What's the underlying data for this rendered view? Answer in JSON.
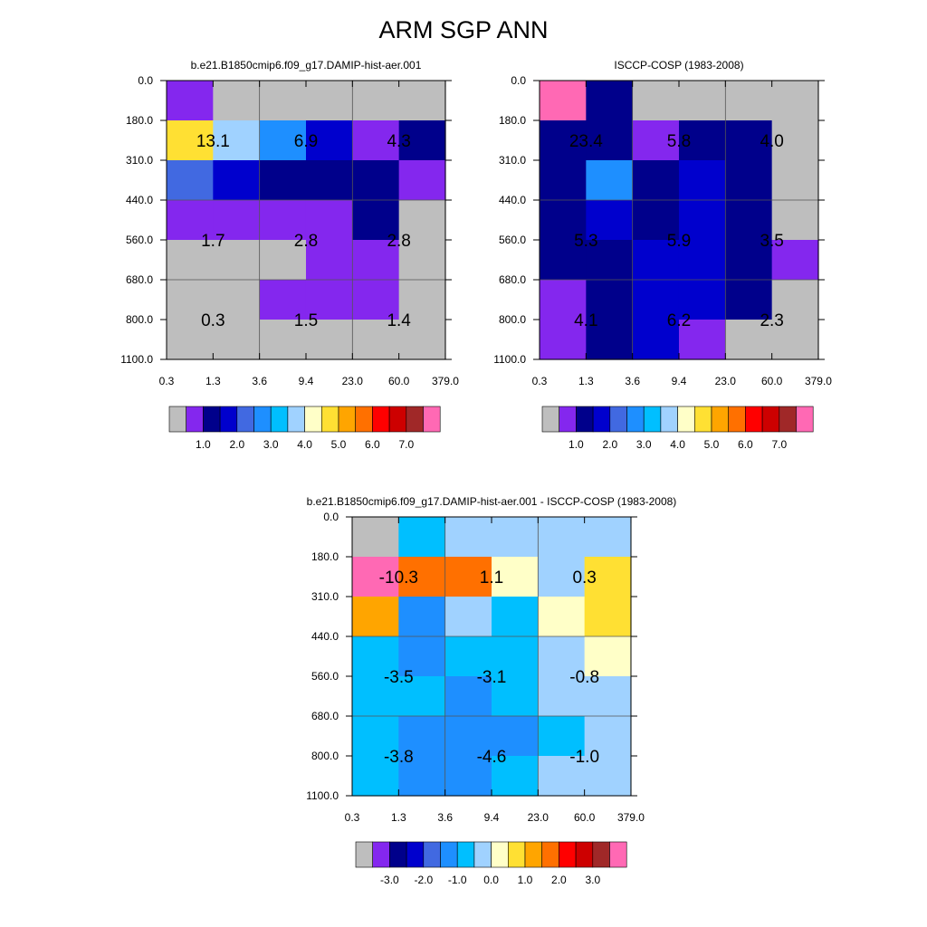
{
  "title": "ARM SGP ANN",
  "chart_data": [
    {
      "type": "heatmap",
      "title": "b.e21.B1850cmip6.f09_g17.DAMIP-hist-aer.001",
      "x_ticks": [
        "0.3",
        "1.3",
        "3.6",
        "9.4",
        "23.0",
        "60.0",
        "379.0"
      ],
      "y_ticks": [
        "0.0",
        "180.0",
        "310.0",
        "440.0",
        "560.0",
        "680.0",
        "800.0",
        "1100.0"
      ],
      "cells": [
        [
          "#8427EE",
          "#BEBEBE",
          "#BEBEBE",
          "#BEBEBE",
          "#BEBEBE",
          "#BEBEBE"
        ],
        [
          "#FFE033",
          "#A0D2FF",
          "#1E8FFF",
          "#0000CD",
          "#8427EE",
          "#00008B"
        ],
        [
          "#4169E1",
          "#0000CD",
          "#00008B",
          "#00008B",
          "#00008B",
          "#8427EE"
        ],
        [
          "#8427EE",
          "#8427EE",
          "#8427EE",
          "#8427EE",
          "#00008B",
          "#BEBEBE"
        ],
        [
          "#BEBEBE",
          "#BEBEBE",
          "#BEBEBE",
          "#8427EE",
          "#8427EE",
          "#BEBEBE"
        ],
        [
          "#BEBEBE",
          "#BEBEBE",
          "#8427EE",
          "#8427EE",
          "#8427EE",
          "#BEBEBE"
        ],
        [
          "#BEBEBE",
          "#BEBEBE",
          "#BEBEBE",
          "#BEBEBE",
          "#BEBEBE",
          "#BEBEBE"
        ]
      ],
      "totals": [
        {
          "value": "13.1",
          "xcol": 1,
          "ybound": 1.5
        },
        {
          "value": "6.9",
          "xcol": 3,
          "ybound": 1.5
        },
        {
          "value": "4.3",
          "xcol": 5,
          "ybound": 1.5
        },
        {
          "value": "1.7",
          "xcol": 1,
          "ybound": 4
        },
        {
          "value": "2.8",
          "xcol": 3,
          "ybound": 4
        },
        {
          "value": "2.8",
          "xcol": 5,
          "ybound": 4
        },
        {
          "value": "0.3",
          "xcol": 1,
          "ybound": 6
        },
        {
          "value": "1.5",
          "xcol": 3,
          "ybound": 6
        },
        {
          "value": "1.4",
          "xcol": 5,
          "ybound": 6
        }
      ],
      "colorbar": {
        "colors": [
          "#BEBEBE",
          "#8427EE",
          "#00008B",
          "#0000CD",
          "#4169E1",
          "#1E8FFF",
          "#00BFFF",
          "#A0D2FF",
          "#FFFFC8",
          "#FFE033",
          "#FFA500",
          "#FF7000",
          "#FF0000",
          "#CD0000",
          "#A02828",
          "#FF69B4"
        ],
        "labels": [
          {
            "text": "1.0",
            "pos": 2
          },
          {
            "text": "2.0",
            "pos": 4
          },
          {
            "text": "3.0",
            "pos": 6
          },
          {
            "text": "4.0",
            "pos": 8
          },
          {
            "text": "5.0",
            "pos": 10
          },
          {
            "text": "6.0",
            "pos": 12
          },
          {
            "text": "7.0",
            "pos": 14
          }
        ]
      }
    },
    {
      "type": "heatmap",
      "title": "ISCCP-COSP (1983-2008)",
      "x_ticks": [
        "0.3",
        "1.3",
        "3.6",
        "9.4",
        "23.0",
        "60.0",
        "379.0"
      ],
      "y_ticks": [
        "0.0",
        "180.0",
        "310.0",
        "440.0",
        "560.0",
        "680.0",
        "800.0",
        "1100.0"
      ],
      "cells": [
        [
          "#FF69B4",
          "#00008B",
          "#BEBEBE",
          "#BEBEBE",
          "#BEBEBE",
          "#BEBEBE"
        ],
        [
          "#00008B",
          "#00008B",
          "#8427EE",
          "#00008B",
          "#00008B",
          "#BEBEBE"
        ],
        [
          "#00008B",
          "#1E8FFF",
          "#00008B",
          "#0000CD",
          "#00008B",
          "#BEBEBE"
        ],
        [
          "#00008B",
          "#0000CD",
          "#00008B",
          "#0000CD",
          "#00008B",
          "#BEBEBE"
        ],
        [
          "#00008B",
          "#00008B",
          "#0000CD",
          "#0000CD",
          "#00008B",
          "#8427EE"
        ],
        [
          "#8427EE",
          "#00008B",
          "#0000CD",
          "#0000CD",
          "#00008B",
          "#BEBEBE"
        ],
        [
          "#8427EE",
          "#00008B",
          "#0000CD",
          "#8427EE",
          "#BEBEBE",
          "#BEBEBE"
        ]
      ],
      "totals": [
        {
          "value": "23.4",
          "xcol": 1,
          "ybound": 1.5
        },
        {
          "value": "5.8",
          "xcol": 3,
          "ybound": 1.5
        },
        {
          "value": "4.0",
          "xcol": 5,
          "ybound": 1.5
        },
        {
          "value": "5.3",
          "xcol": 1,
          "ybound": 4
        },
        {
          "value": "5.9",
          "xcol": 3,
          "ybound": 4
        },
        {
          "value": "3.5",
          "xcol": 5,
          "ybound": 4
        },
        {
          "value": "4.1",
          "xcol": 1,
          "ybound": 6
        },
        {
          "value": "6.2",
          "xcol": 3,
          "ybound": 6
        },
        {
          "value": "2.3",
          "xcol": 5,
          "ybound": 6
        }
      ],
      "colorbar": {
        "colors": [
          "#BEBEBE",
          "#8427EE",
          "#00008B",
          "#0000CD",
          "#4169E1",
          "#1E8FFF",
          "#00BFFF",
          "#A0D2FF",
          "#FFFFC8",
          "#FFE033",
          "#FFA500",
          "#FF7000",
          "#FF0000",
          "#CD0000",
          "#A02828",
          "#FF69B4"
        ],
        "labels": [
          {
            "text": "1.0",
            "pos": 2
          },
          {
            "text": "2.0",
            "pos": 4
          },
          {
            "text": "3.0",
            "pos": 6
          },
          {
            "text": "4.0",
            "pos": 8
          },
          {
            "text": "5.0",
            "pos": 10
          },
          {
            "text": "6.0",
            "pos": 12
          },
          {
            "text": "7.0",
            "pos": 14
          }
        ]
      }
    },
    {
      "type": "heatmap",
      "title": "b.e21.B1850cmip6.f09_g17.DAMIP-hist-aer.001 - ISCCP-COSP (1983-2008)",
      "x_ticks": [
        "0.3",
        "1.3",
        "3.6",
        "9.4",
        "23.0",
        "60.0",
        "379.0"
      ],
      "y_ticks": [
        "0.0",
        "180.0",
        "310.0",
        "440.0",
        "560.0",
        "680.0",
        "800.0",
        "1100.0"
      ],
      "cells": [
        [
          "#BEBEBE",
          "#00BFFF",
          "#A0D2FF",
          "#A0D2FF",
          "#A0D2FF",
          "#A0D2FF"
        ],
        [
          "#FF69B4",
          "#FF7000",
          "#FF7000",
          "#FFFFC8",
          "#A0D2FF",
          "#FFE033"
        ],
        [
          "#FFA500",
          "#1E8FFF",
          "#A0D2FF",
          "#00BFFF",
          "#FFFFC8",
          "#FFE033"
        ],
        [
          "#00BFFF",
          "#1E8FFF",
          "#00BFFF",
          "#00BFFF",
          "#A0D2FF",
          "#FFFFC8"
        ],
        [
          "#00BFFF",
          "#00BFFF",
          "#1E8FFF",
          "#00BFFF",
          "#A0D2FF",
          "#A0D2FF"
        ],
        [
          "#00BFFF",
          "#1E8FFF",
          "#1E8FFF",
          "#1E8FFF",
          "#00BFFF",
          "#A0D2FF"
        ],
        [
          "#00BFFF",
          "#1E8FFF",
          "#1E8FFF",
          "#00BFFF",
          "#A0D2FF",
          "#A0D2FF"
        ]
      ],
      "totals": [
        {
          "value": "-10.3",
          "xcol": 1,
          "ybound": 1.5
        },
        {
          "value": "1.1",
          "xcol": 3,
          "ybound": 1.5
        },
        {
          "value": "0.3",
          "xcol": 5,
          "ybound": 1.5
        },
        {
          "value": "-3.5",
          "xcol": 1,
          "ybound": 4
        },
        {
          "value": "-3.1",
          "xcol": 3,
          "ybound": 4
        },
        {
          "value": "-0.8",
          "xcol": 5,
          "ybound": 4
        },
        {
          "value": "-3.8",
          "xcol": 1,
          "ybound": 6
        },
        {
          "value": "-4.6",
          "xcol": 3,
          "ybound": 6
        },
        {
          "value": "-1.0",
          "xcol": 5,
          "ybound": 6
        }
      ],
      "colorbar": {
        "colors": [
          "#BEBEBE",
          "#8427EE",
          "#00008B",
          "#0000CD",
          "#4169E1",
          "#1E8FFF",
          "#00BFFF",
          "#A0D2FF",
          "#FFFFC8",
          "#FFE033",
          "#FFA500",
          "#FF7000",
          "#FF0000",
          "#CD0000",
          "#A02828",
          "#FF69B4"
        ],
        "labels": [
          {
            "text": "-3.0",
            "pos": 2
          },
          {
            "text": "-2.0",
            "pos": 4
          },
          {
            "text": "-1.0",
            "pos": 6
          },
          {
            "text": "0.0",
            "pos": 8
          },
          {
            "text": "1.0",
            "pos": 10
          },
          {
            "text": "2.0",
            "pos": 12
          },
          {
            "text": "3.0",
            "pos": 14
          }
        ]
      }
    }
  ]
}
